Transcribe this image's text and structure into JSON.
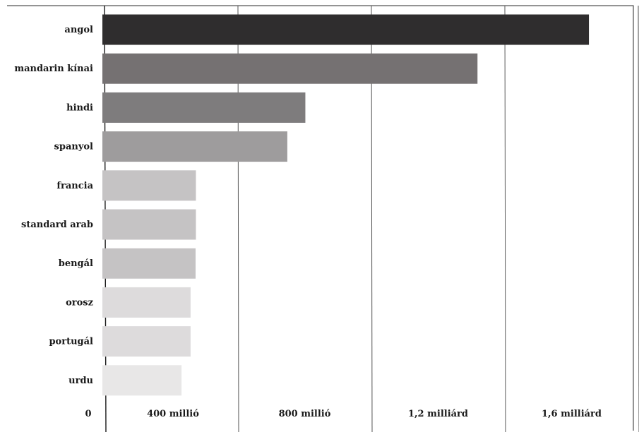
{
  "chart_data": {
    "type": "bar",
    "orientation": "horizontal",
    "categories": [
      "angol",
      "mandarin kínai",
      "hindi",
      "spanyol",
      "francia",
      "standard arab",
      "bengál",
      "orosz",
      "portugál",
      "urdu"
    ],
    "values": [
      1452,
      1118,
      602,
      548,
      274,
      274,
      273,
      258,
      258,
      231
    ],
    "bar_colors": [
      "#2f2d2e",
      "#757172",
      "#7e7c7d",
      "#9e9c9d",
      "#c5c3c4",
      "#c5c3c4",
      "#c5c3c4",
      "#dddbdc",
      "#dddbdc",
      "#e8e7e7"
    ],
    "title": "",
    "xlabel": "",
    "ylabel": "",
    "xlim": [
      0,
      1800
    ],
    "x_ticks": [
      0,
      400,
      800,
      1200,
      1600
    ],
    "x_tick_labels": [
      "0",
      "400 millió",
      "800 millió",
      "1,2 milliárd",
      "1,6 milliárd"
    ],
    "grid": true,
    "legend": "none"
  }
}
